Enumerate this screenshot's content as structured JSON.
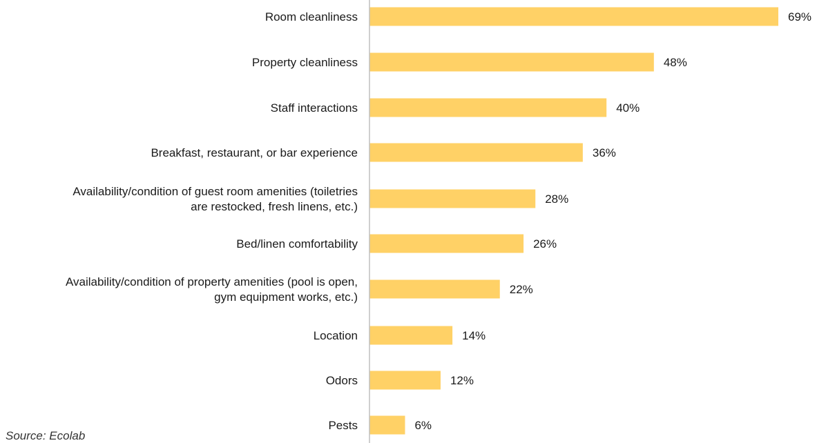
{
  "chart_data": {
    "type": "bar",
    "orientation": "horizontal",
    "categories": [
      "Room cleanliness",
      "Property cleanliness",
      "Staff interactions",
      "Breakfast, restaurant, or bar experience",
      "Availability/condition of guest room amenities (toiletries are restocked, fresh linens, etc.)",
      "Bed/linen comfortability",
      "Availability/condition of property amenities (pool is open, gym equipment works, etc.)",
      "Location",
      "Odors",
      "Pests"
    ],
    "category_lines": [
      [
        "Room cleanliness"
      ],
      [
        "Property cleanliness"
      ],
      [
        "Staff interactions"
      ],
      [
        "Breakfast, restaurant, or bar experience"
      ],
      [
        "Availability/condition of guest room amenities (toiletries",
        "are restocked, fresh linens, etc.)"
      ],
      [
        "Bed/linen comfortability"
      ],
      [
        "Availability/condition of property amenities (pool is open,",
        "gym equipment works, etc.)"
      ],
      [
        "Location"
      ],
      [
        "Odors"
      ],
      [
        "Pests"
      ]
    ],
    "values": [
      69,
      48,
      40,
      36,
      28,
      26,
      22,
      14,
      12,
      6
    ],
    "value_labels": [
      "69%",
      "48%",
      "40%",
      "36%",
      "28%",
      "26%",
      "22%",
      "14%",
      "12%",
      "6%"
    ],
    "unit": "%",
    "xlim": [
      0,
      69
    ],
    "grid": false,
    "legend": "none",
    "bar_color": "#FFD166",
    "axis_color": "#BFBFBF"
  },
  "source_text": "Source: Ecolab"
}
